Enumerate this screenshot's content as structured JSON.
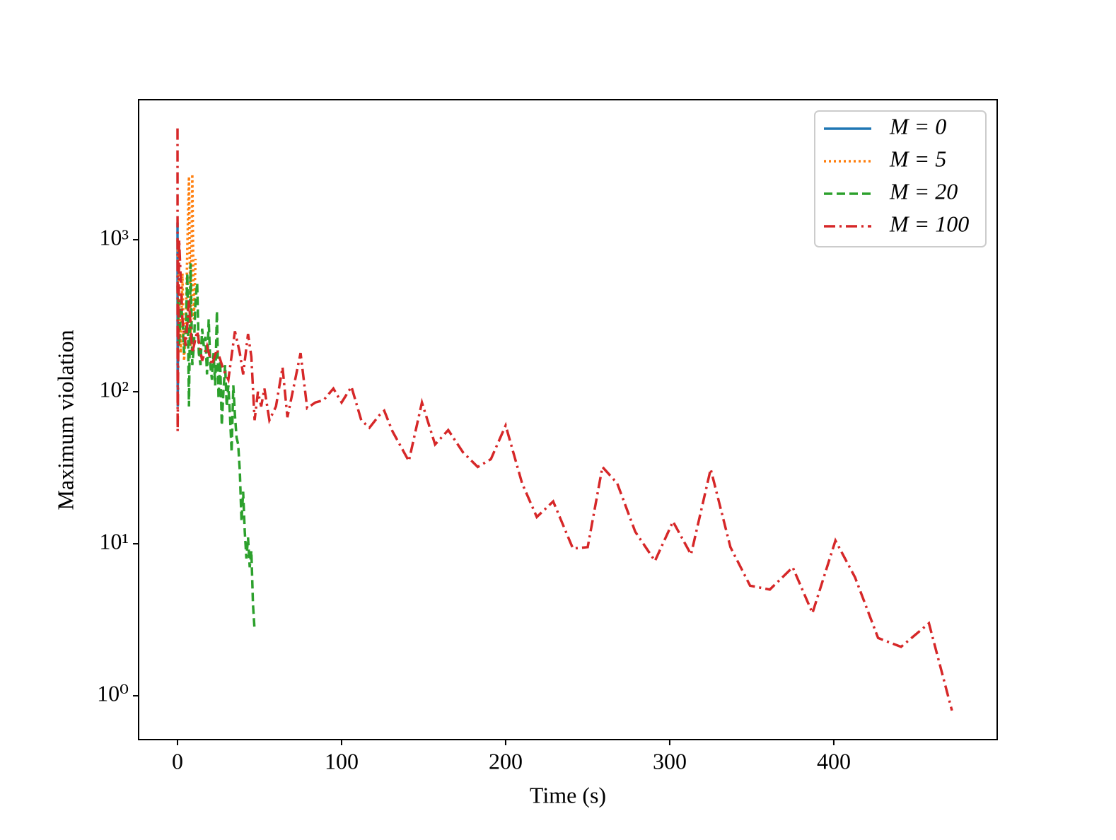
{
  "chart_data": {
    "type": "line",
    "xlabel": "Time (s)",
    "ylabel": "Maximum violation",
    "xlim": [
      -23.7,
      499.6
    ],
    "ylim": [
      0.515,
      8340
    ],
    "log_y": true,
    "xticks": [
      0,
      100,
      200,
      300,
      400
    ],
    "yticks": [
      {
        "value": 1,
        "label": "10⁰"
      },
      {
        "value": 10,
        "label": "10¹"
      },
      {
        "value": 100,
        "label": "10²"
      },
      {
        "value": 1000,
        "label": "10³"
      }
    ],
    "legend": "upper right",
    "series": [
      {
        "name": "M = 0",
        "color": "#1f77b4",
        "linestyle": "solid",
        "x": [
          0,
          0.1,
          0.2,
          0.3
        ],
        "values": [
          1300,
          130,
          80,
          400
        ]
      },
      {
        "name": "M = 5",
        "color": "#ff7f0e",
        "linestyle": "dotted",
        "x": [
          0,
          1,
          2,
          3,
          4,
          5,
          6,
          7,
          8,
          9,
          10,
          11
        ],
        "values": [
          1000,
          400,
          180,
          600,
          160,
          250,
          900,
          2600,
          200,
          2700,
          300,
          750
        ]
      },
      {
        "name": "M = 20",
        "color": "#2ca02c",
        "linestyle": "dashed",
        "x": [
          0,
          1,
          2,
          3,
          4,
          5,
          6,
          7,
          8,
          9,
          10,
          11,
          12,
          13,
          14,
          15,
          16,
          17,
          18,
          19,
          20,
          21,
          22,
          23,
          24,
          25,
          26,
          27,
          28,
          29,
          30,
          31,
          32,
          33,
          34,
          35,
          36,
          37,
          38,
          39,
          40,
          41,
          42,
          43,
          44,
          45,
          46,
          47
        ],
        "values": [
          500,
          200,
          400,
          300,
          180,
          250,
          600,
          80,
          700,
          150,
          200,
          400,
          520,
          180,
          150,
          260,
          200,
          230,
          130,
          300,
          150,
          120,
          180,
          110,
          340,
          90,
          160,
          60,
          100,
          150,
          80,
          110,
          70,
          40,
          110,
          70,
          50,
          45,
          30,
          14,
          22,
          12,
          8,
          11,
          7,
          9,
          4,
          2.7
        ]
      },
      {
        "name": "M = 100",
        "color": "#d62728",
        "linestyle": "dashdot",
        "x": [
          0,
          0.1,
          1,
          3,
          5,
          7,
          9,
          12,
          15,
          18,
          21,
          24,
          28,
          31,
          35,
          38,
          40,
          43,
          45,
          47,
          49,
          51,
          53,
          56,
          60,
          64,
          67,
          71,
          75,
          79,
          84,
          89,
          95,
          100,
          106,
          112,
          117,
          123,
          126,
          131,
          141,
          149,
          157,
          165,
          174,
          183,
          191,
          200,
          210,
          219,
          229,
          241,
          250,
          259,
          268,
          279,
          291,
          302,
          313,
          325,
          337,
          349,
          361,
          375,
          387,
          401,
          413,
          427,
          441,
          458,
          472
        ],
        "values": [
          5400,
          55,
          1000,
          300,
          200,
          400,
          180,
          250,
          160,
          200,
          150,
          190,
          140,
          120,
          250,
          180,
          130,
          240,
          170,
          65,
          100,
          80,
          105,
          65,
          80,
          145,
          68,
          110,
          180,
          78,
          85,
          88,
          105,
          85,
          108,
          65,
          58,
          70,
          75,
          55,
          35,
          85,
          45,
          56,
          40,
          32,
          36,
          60,
          25,
          15,
          19,
          9.3,
          9.5,
          32,
          25,
          12,
          7.7,
          14,
          8.5,
          31,
          9.5,
          5.3,
          5,
          7,
          3.5,
          10.5,
          6,
          2.4,
          2.1,
          3,
          0.8
        ]
      }
    ]
  }
}
